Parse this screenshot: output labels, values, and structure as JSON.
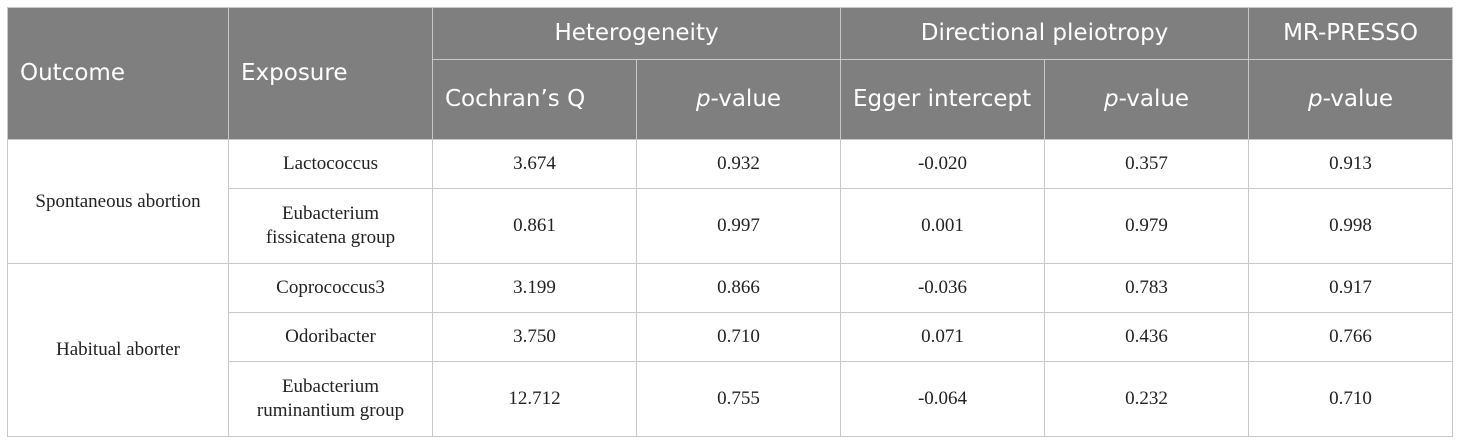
{
  "table": {
    "headers": {
      "outcome": "Outcome",
      "exposure": "Exposure",
      "heterogeneity": "Heterogeneity",
      "directional_pleiotropy": "Directional pleiotropy",
      "mr_presso": "MR-PRESSO",
      "cochrans_q": "Cochran’s Q",
      "p_letter": "p",
      "p_suffix": "-value",
      "egger_intercept": "Egger intercept"
    },
    "rows": [
      {
        "outcome": "Spontaneous abortion",
        "exposure": "Lactococcus",
        "q": "3.674",
        "p_het": "0.932",
        "egger": "-0.020",
        "p_pleio": "0.357",
        "p_presso": "0.913"
      },
      {
        "outcome": "",
        "exposure": "Eubacterium fissicatena group",
        "q": "0.861",
        "p_het": "0.997",
        "egger": "0.001",
        "p_pleio": "0.979",
        "p_presso": "0.998"
      },
      {
        "outcome": "Habitual aborter",
        "exposure": "Coprococcus3",
        "q": "3.199",
        "p_het": "0.866",
        "egger": "-0.036",
        "p_pleio": "0.783",
        "p_presso": "0.917"
      },
      {
        "outcome": "",
        "exposure": "Odoribacter",
        "q": "3.750",
        "p_het": "0.710",
        "egger": "0.071",
        "p_pleio": "0.436",
        "p_presso": "0.766"
      },
      {
        "outcome": "",
        "exposure": "Eubacterium ruminantium group",
        "q": "12.712",
        "p_het": "0.755",
        "egger": "-0.064",
        "p_pleio": "0.232",
        "p_presso": "0.710"
      }
    ]
  }
}
